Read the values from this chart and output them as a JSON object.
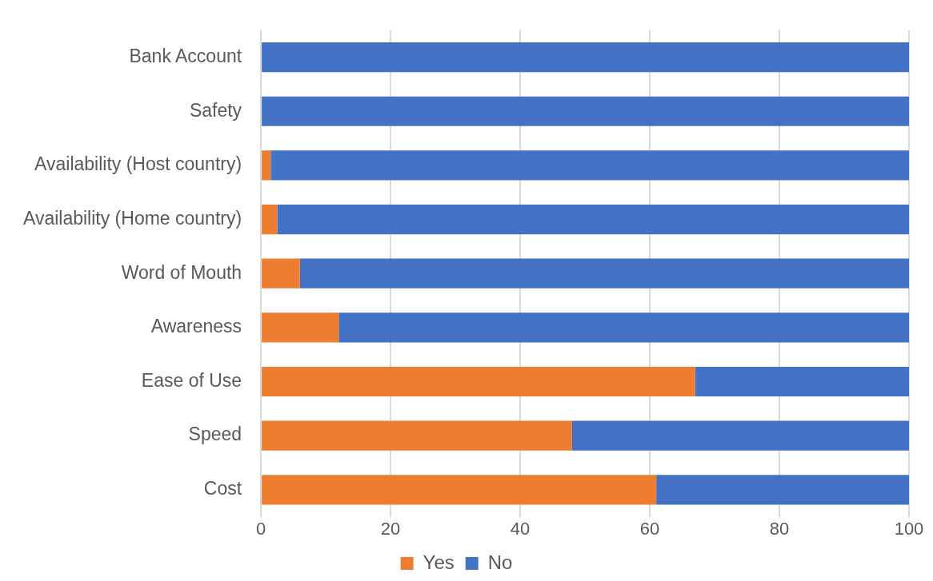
{
  "chart_data": {
    "type": "bar",
    "orientation": "horizontal",
    "stacked": true,
    "categories": [
      "Bank Account",
      "Safety",
      "Availability (Host country)",
      "Availability (Home country)",
      "Word of Mouth",
      "Awareness",
      "Ease of Use",
      "Speed",
      "Cost"
    ],
    "series": [
      {
        "name": "Yes",
        "color": "#ed7d31",
        "values": [
          0,
          0,
          1.5,
          2.5,
          6,
          12,
          67,
          48,
          61
        ]
      },
      {
        "name": "No",
        "color": "#4472c4",
        "values": [
          100,
          100,
          98.5,
          97.5,
          94,
          88,
          33,
          52,
          39
        ]
      }
    ],
    "xlim": [
      0,
      100
    ],
    "xticks": [
      0,
      20,
      40,
      60,
      80,
      100
    ],
    "grid": "x",
    "legend": "bottom"
  }
}
